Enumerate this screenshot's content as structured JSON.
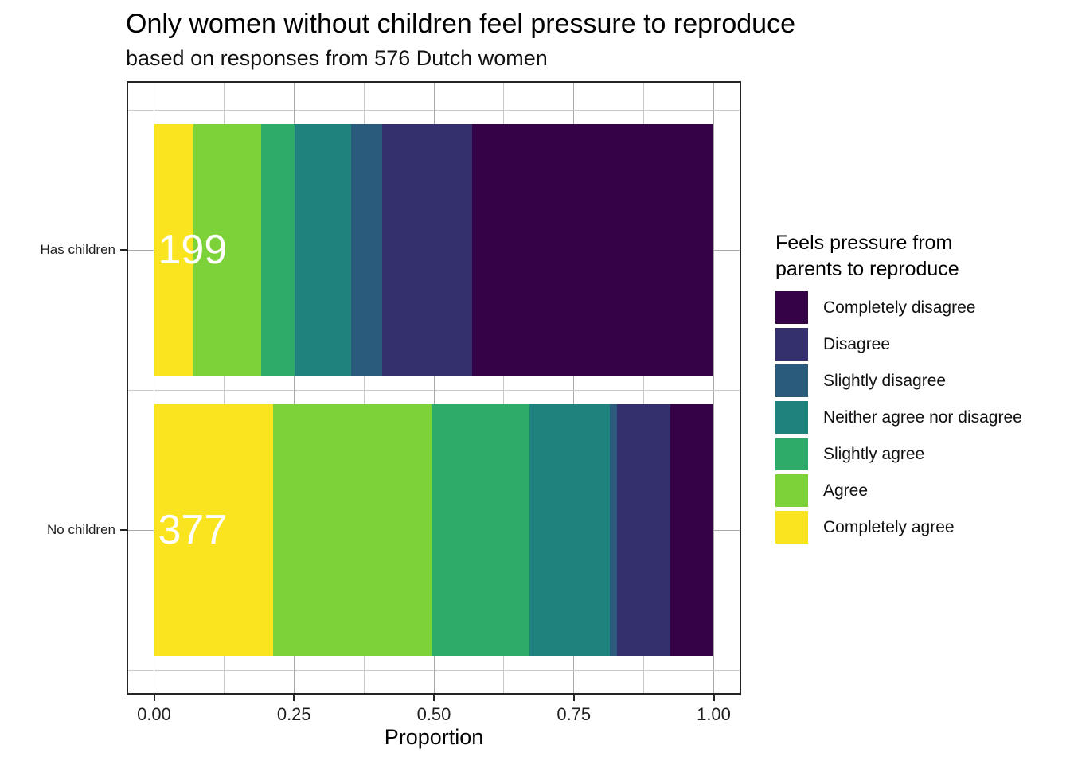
{
  "chart_data": {
    "type": "bar",
    "orientation": "horizontal",
    "stacked": true,
    "normalized": true,
    "title": "Only women without children feel pressure to reproduce",
    "subtitle": "based on responses from 576 Dutch women",
    "xlabel": "Proportion",
    "xlim": [
      0,
      1
    ],
    "x_tick_values": [
      0,
      0.25,
      0.5,
      0.75,
      1
    ],
    "x_tick_labels": [
      "0.00",
      "0.25",
      "0.50",
      "0.75",
      "1.00"
    ],
    "x_minor_tick_values": [
      0.125,
      0.375,
      0.625,
      0.875
    ],
    "categories": [
      "Has children",
      "No children"
    ],
    "totals": [
      199,
      377
    ],
    "bar_value_labels": [
      "199",
      "377"
    ],
    "legend_title": "Feels pressure from\nparents to reproduce",
    "legend_position": "right",
    "grid": true,
    "series": [
      {
        "name": "Completely disagree",
        "color": "#350248",
        "counts": [
          86,
          29
        ],
        "proportions": [
          0.432,
          0.077
        ]
      },
      {
        "name": "Disagree",
        "color": "#34306D",
        "counts": [
          32,
          36
        ],
        "proportions": [
          0.161,
          0.095
        ]
      },
      {
        "name": "Slightly disagree",
        "color": "#2A5A7C",
        "counts": [
          11,
          5
        ],
        "proportions": [
          0.055,
          0.013
        ]
      },
      {
        "name": "Neither agree nor disagree",
        "color": "#1F827D",
        "counts": [
          20,
          54
        ],
        "proportions": [
          0.101,
          0.143
        ]
      },
      {
        "name": "Slightly agree",
        "color": "#2FAB69",
        "counts": [
          12,
          66
        ],
        "proportions": [
          0.06,
          0.175
        ]
      },
      {
        "name": "Agree",
        "color": "#7DD139",
        "counts": [
          24,
          107
        ],
        "proportions": [
          0.121,
          0.284
        ]
      },
      {
        "name": "Completely agree",
        "color": "#FAE420",
        "counts": [
          14,
          80
        ],
        "proportions": [
          0.07,
          0.212
        ]
      }
    ],
    "draw_order_note": "segments drawn left-to-right from Completely agree (yellow) to Completely disagree (dark purple); legend listed top-to-bottom from Completely disagree"
  }
}
